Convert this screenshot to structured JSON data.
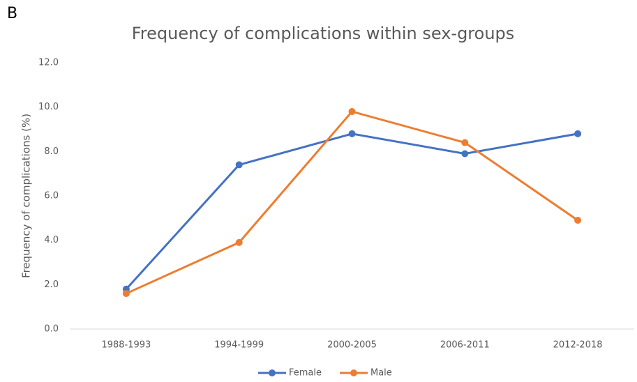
{
  "panel_label": "B",
  "chart_data": {
    "type": "line",
    "title": "Frequency of complications within sex-groups",
    "y_label": "Frequency of complications (%)",
    "categories": [
      "1988-1993",
      "1994-1999",
      "2000-2005",
      "2006-2011",
      "2012-2018"
    ],
    "series": [
      {
        "name": "Female",
        "color": "#4472c4",
        "values": [
          1.8,
          7.4,
          8.8,
          7.9,
          8.8
        ]
      },
      {
        "name": "Male",
        "color": "#ed7d31",
        "values": [
          1.6,
          3.9,
          9.8,
          8.4,
          4.9
        ]
      }
    ],
    "ylim": [
      0,
      12
    ],
    "yticks": [
      {
        "value": 0,
        "label": "0.0"
      },
      {
        "value": 2,
        "label": "2.0"
      },
      {
        "value": 4,
        "label": "4.0"
      },
      {
        "value": 6,
        "label": "6.0"
      },
      {
        "value": 8,
        "label": "8.0"
      },
      {
        "value": 10,
        "label": "10.0"
      },
      {
        "value": 12,
        "label": "12.0"
      }
    ],
    "grid": false,
    "legend": "bottom"
  }
}
